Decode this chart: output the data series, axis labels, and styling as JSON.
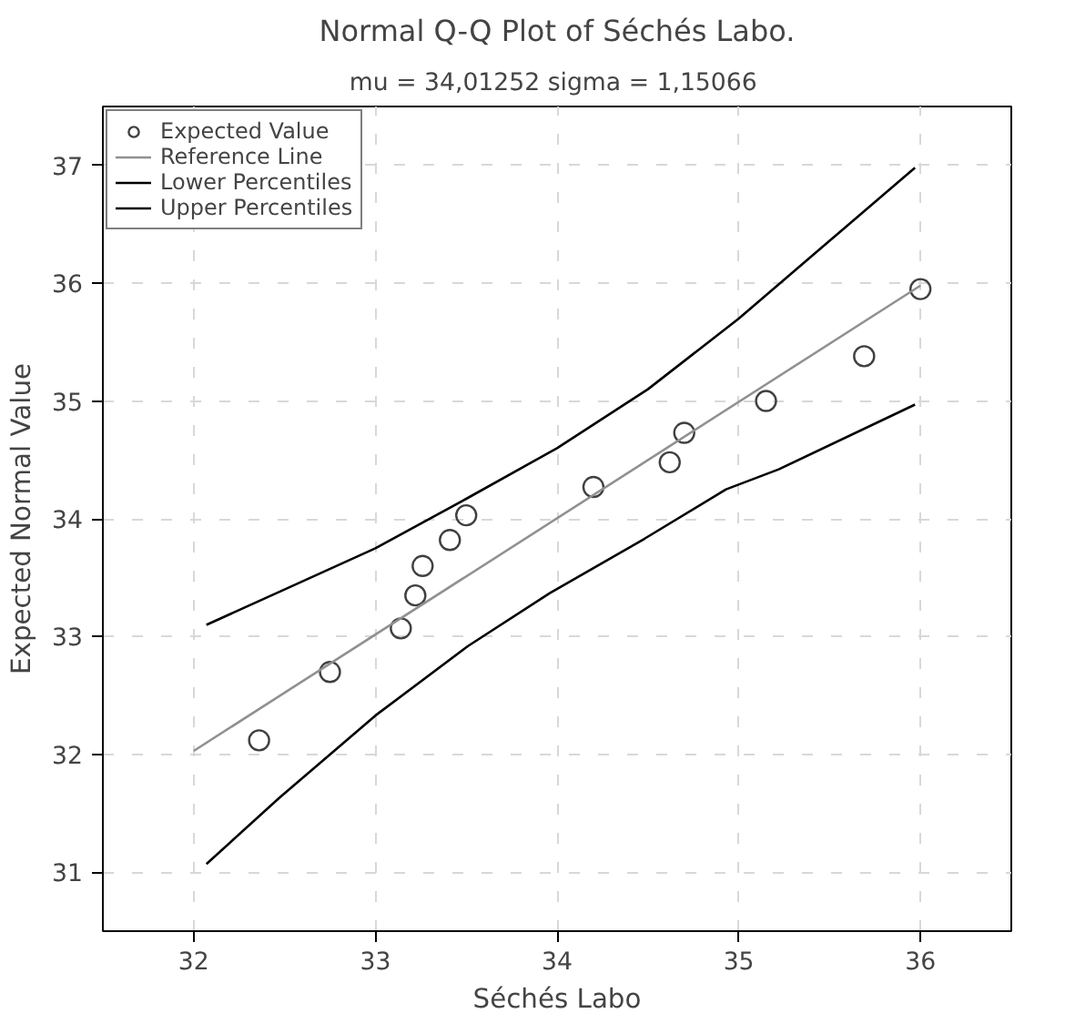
{
  "chart_data": {
    "type": "scatter",
    "title": "Normal Q-Q Plot of Séchés Labo.",
    "subtitle": "mu = 34,01252  sigma = 1,15066",
    "xlabel": "Séchés Labo",
    "ylabel": "Expected Normal Value",
    "xlim": [
      31.5,
      36.5
    ],
    "ylim": [
      30.5,
      37.5
    ],
    "xticks": [
      32,
      33,
      34,
      35,
      36
    ],
    "yticks": [
      31,
      32,
      33,
      34,
      35,
      36,
      37
    ],
    "grid": true,
    "legend": "top left",
    "marker": "circle",
    "series": [
      {
        "name": "Expected Value",
        "color": "#404040",
        "x": [
          32.36,
          32.75,
          33.14,
          33.22,
          33.26,
          33.41,
          33.5,
          34.2,
          34.62,
          34.7,
          35.15,
          35.69,
          36.0
        ],
        "values": [
          32.12,
          32.7,
          33.07,
          33.35,
          33.6,
          33.82,
          34.03,
          34.27,
          34.48,
          34.73,
          35.0,
          35.38,
          35.95
        ]
      },
      {
        "name": "Reference Line",
        "type": "line",
        "marker": "none",
        "color": "#909090",
        "x": [
          32.0,
          36.0
        ],
        "values": [
          32.03,
          35.98
        ]
      },
      {
        "name": "Lower Percentiles",
        "type": "line",
        "marker": "none",
        "color": "#000000",
        "x": [
          32.07,
          32.47,
          33.0,
          33.51,
          33.96,
          34.48,
          34.93,
          35.22,
          35.97
        ],
        "values": [
          31.07,
          31.63,
          32.33,
          32.92,
          33.37,
          33.83,
          34.25,
          34.42,
          34.97
        ]
      },
      {
        "name": "Upper Percentiles",
        "type": "line",
        "marker": "none",
        "color": "#000000",
        "x": [
          32.07,
          32.5,
          33.0,
          33.5,
          34.0,
          34.5,
          35.0,
          35.5,
          35.97
        ],
        "values": [
          33.1,
          33.4,
          33.75,
          34.17,
          34.6,
          35.1,
          35.7,
          36.36,
          36.98
        ]
      }
    ]
  }
}
